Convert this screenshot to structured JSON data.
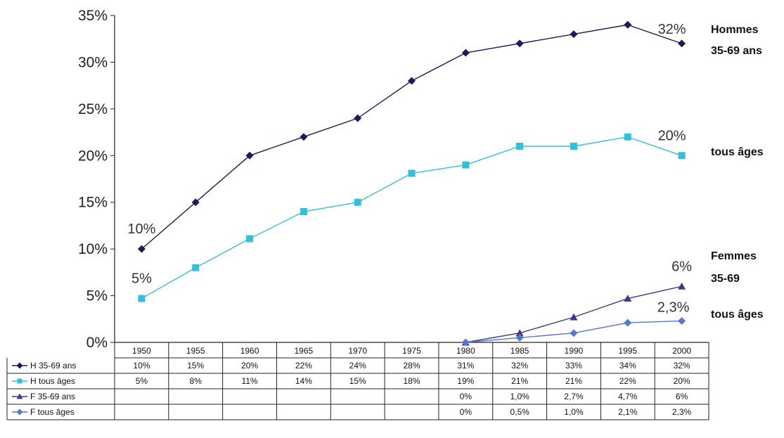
{
  "chart_data": {
    "type": "line",
    "categories": [
      "1950",
      "1955",
      "1960",
      "1965",
      "1970",
      "1975",
      "1980",
      "1985",
      "1990",
      "1995",
      "2000"
    ],
    "y_ticks": [
      "0%",
      "5%",
      "10%",
      "15%",
      "20%",
      "25%",
      "30%",
      "35%"
    ],
    "ylim": [
      0,
      35
    ],
    "grid": false,
    "series": [
      {
        "name": "H 35-69 ans",
        "color": "#1a1a5e",
        "marker": "diamond",
        "values": [
          10,
          15,
          20,
          22,
          24,
          28,
          31,
          32,
          33,
          34,
          32
        ],
        "table": [
          "10%",
          "15%",
          "20%",
          "22%",
          "24%",
          "28%",
          "31%",
          "32%",
          "33%",
          "34%",
          "32%"
        ]
      },
      {
        "name": "H tous âges",
        "color": "#33c0dd",
        "marker": "square",
        "values": [
          4.7,
          8,
          11.1,
          14,
          15,
          18.1,
          19,
          21,
          21,
          22,
          20
        ],
        "table": [
          "5%",
          "8%",
          "11%",
          "14%",
          "15%",
          "18%",
          "19%",
          "21%",
          "21%",
          "22%",
          "20%"
        ]
      },
      {
        "name": "F 35-69 ans",
        "color": "#3b3b8c",
        "marker": "triangle",
        "values": [
          null,
          null,
          null,
          null,
          null,
          null,
          0,
          1.0,
          2.7,
          4.7,
          6
        ],
        "table": [
          "",
          "",
          "",
          "",
          "",
          "",
          "0%",
          "1,0%",
          "2,7%",
          "4,7%",
          "6%"
        ]
      },
      {
        "name": "F tous âges",
        "color": "#5577cc",
        "marker": "diamond",
        "values": [
          null,
          null,
          null,
          null,
          null,
          null,
          0,
          0.5,
          1.0,
          2.1,
          2.3
        ],
        "table": [
          "",
          "",
          "",
          "",
          "",
          "",
          "0%",
          "0,5%",
          "1,0%",
          "2,1%",
          "2,3%"
        ]
      }
    ],
    "annotations": [
      {
        "text": "10%",
        "series": 0,
        "index": 0
      },
      {
        "text": "5%",
        "series": 1,
        "index": 0
      },
      {
        "text": "32%",
        "series": 0,
        "index": 10
      },
      {
        "text": "20%",
        "series": 1,
        "index": 10
      },
      {
        "text": "6%",
        "series": 2,
        "index": 10
      },
      {
        "text": "2,3%",
        "series": 3,
        "index": 10
      }
    ],
    "side_labels": [
      {
        "text": "Hommes",
        "series": 0
      },
      {
        "text": "35-69 ans",
        "series": 0
      },
      {
        "text": "tous âges",
        "series": 1
      },
      {
        "text": "Femmes",
        "series": 2
      },
      {
        "text": "35-69",
        "series": 2
      },
      {
        "text": "tous âges",
        "series": 3
      }
    ]
  }
}
